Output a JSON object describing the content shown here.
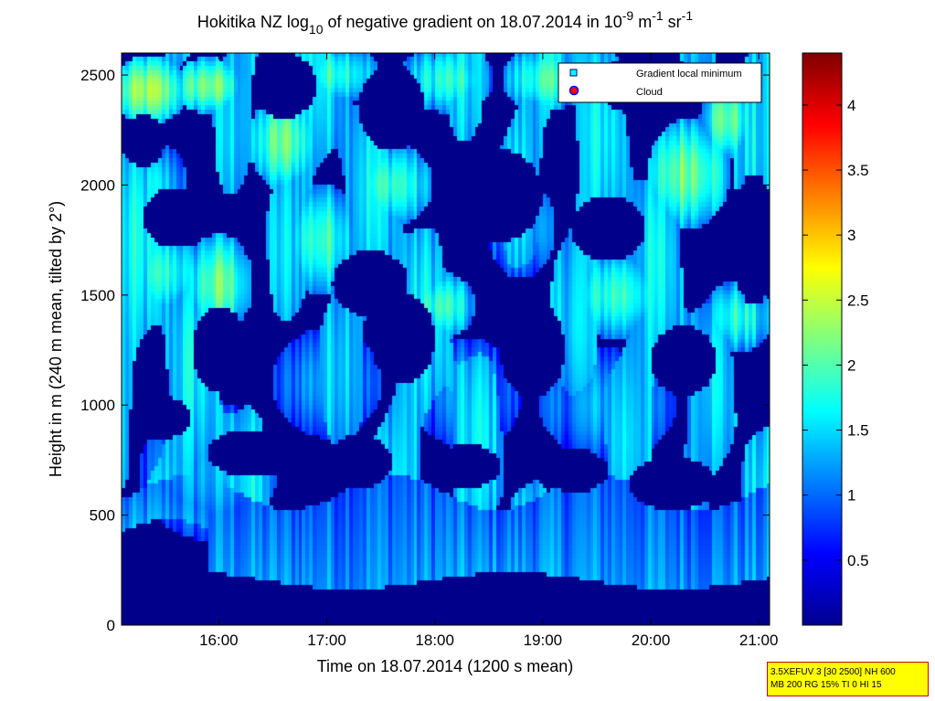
{
  "chart_data": {
    "type": "heatmap",
    "title": {
      "prefix": "Hokitika NZ log",
      "sub": "10",
      "mid": " of negative gradient on 18.07.2014 in 10",
      "sup1": "-9",
      "mid2": " m",
      "sup2": "-1",
      "mid3": " sr",
      "sup3": "-1"
    },
    "xlabel": "Time on 18.07.2014 (1200 s mean)",
    "ylabel": "Height in m (240 m mean, tilted by 2°)",
    "x_range_hours": [
      15.1,
      21.1
    ],
    "ylim": [
      0,
      2600
    ],
    "x_ticks": [
      {
        "value": 16,
        "label": "16:00"
      },
      {
        "value": 17,
        "label": "17:00"
      },
      {
        "value": 18,
        "label": "18:00"
      },
      {
        "value": 19,
        "label": "19:00"
      },
      {
        "value": 20,
        "label": "20:00"
      },
      {
        "value": 21,
        "label": "21:00"
      }
    ],
    "y_ticks": [
      {
        "value": 0,
        "label": "0"
      },
      {
        "value": 500,
        "label": "500"
      },
      {
        "value": 1000,
        "label": "1000"
      },
      {
        "value": 1500,
        "label": "1500"
      },
      {
        "value": 2000,
        "label": "2000"
      },
      {
        "value": 2500,
        "label": "2500"
      }
    ],
    "colorbar": {
      "colormap": "jet",
      "range": [
        0,
        4.4
      ],
      "ticks": [
        {
          "value": 0.5,
          "label": "0.5"
        },
        {
          "value": 1,
          "label": "1"
        },
        {
          "value": 1.5,
          "label": "1.5"
        },
        {
          "value": 2,
          "label": "2"
        },
        {
          "value": 2.5,
          "label": "2.5"
        },
        {
          "value": 3,
          "label": "3"
        },
        {
          "value": 3.5,
          "label": "3.5"
        },
        {
          "value": 4,
          "label": "4"
        }
      ]
    },
    "legend": {
      "placement": "top-right",
      "entries": [
        {
          "label": "Gradient local minimum",
          "marker": "square",
          "color": "#00ffff"
        },
        {
          "label": "Cloud",
          "marker": "circle",
          "color": "#ff0000"
        }
      ]
    },
    "field_description_values": {
      "near_ground_below_m": 200,
      "background_value": 0.05,
      "aerosol_layer_value": 1.1,
      "upper_patch_value": 1.6,
      "peak_patch_value": 2.3
    },
    "patches": [
      {
        "t": 15.35,
        "h": 2430,
        "rt": 0.3,
        "rh": 120,
        "v": 2.3
      },
      {
        "t": 15.9,
        "h": 2450,
        "rt": 0.25,
        "rh": 100,
        "v": 2.2
      },
      {
        "t": 16.6,
        "h": 2200,
        "rt": 0.25,
        "rh": 180,
        "v": 2.1
      },
      {
        "t": 17.1,
        "h": 2500,
        "rt": 0.3,
        "rh": 110,
        "v": 1.9
      },
      {
        "t": 18.1,
        "h": 2480,
        "rt": 0.35,
        "rh": 120,
        "v": 1.8
      },
      {
        "t": 19.0,
        "h": 2480,
        "rt": 0.3,
        "rh": 120,
        "v": 1.9
      },
      {
        "t": 20.35,
        "h": 2050,
        "rt": 0.3,
        "rh": 200,
        "v": 2.2
      },
      {
        "t": 20.7,
        "h": 2300,
        "rt": 0.2,
        "rh": 150,
        "v": 2.1
      },
      {
        "t": 15.5,
        "h": 1600,
        "rt": 0.25,
        "rh": 160,
        "v": 1.8
      },
      {
        "t": 16.0,
        "h": 1550,
        "rt": 0.25,
        "rh": 180,
        "v": 2.1
      },
      {
        "t": 16.95,
        "h": 1750,
        "rt": 0.3,
        "rh": 200,
        "v": 1.9
      },
      {
        "t": 17.6,
        "h": 2000,
        "rt": 0.3,
        "rh": 150,
        "v": 1.9
      },
      {
        "t": 18.05,
        "h": 1450,
        "rt": 0.25,
        "rh": 120,
        "v": 1.9
      },
      {
        "t": 19.7,
        "h": 1500,
        "rt": 0.35,
        "rh": 160,
        "v": 1.9
      },
      {
        "t": 20.8,
        "h": 1400,
        "rt": 0.25,
        "rh": 130,
        "v": 1.8
      },
      {
        "t": 15.9,
        "h": 700,
        "rt": 0.5,
        "rh": 250,
        "v": 1.3
      },
      {
        "t": 17.0,
        "h": 1100,
        "rt": 0.4,
        "rh": 200,
        "v": 1.3
      },
      {
        "t": 18.3,
        "h": 1050,
        "rt": 0.4,
        "rh": 200,
        "v": 1.2
      },
      {
        "t": 19.6,
        "h": 1000,
        "rt": 0.5,
        "rh": 200,
        "v": 1.3
      },
      {
        "t": 15.4,
        "h": 2000,
        "rt": 0.25,
        "rh": 150,
        "v": 1.5
      },
      {
        "t": 18.8,
        "h": 1800,
        "rt": 0.25,
        "rh": 180,
        "v": 1.4
      }
    ],
    "gaps": [
      {
        "t": 15.45,
        "h": 940,
        "rt": 0.3,
        "rh": 100
      },
      {
        "t": 16.3,
        "h": 780,
        "rt": 0.4,
        "rh": 110
      },
      {
        "t": 17.3,
        "h": 740,
        "rt": 0.3,
        "rh": 120
      },
      {
        "t": 18.3,
        "h": 720,
        "rt": 0.3,
        "rh": 100
      },
      {
        "t": 19.3,
        "h": 700,
        "rt": 0.3,
        "rh": 100
      },
      {
        "t": 20.2,
        "h": 640,
        "rt": 0.4,
        "rh": 120
      },
      {
        "t": 16.0,
        "h": 1250,
        "rt": 0.25,
        "rh": 200
      },
      {
        "t": 17.7,
        "h": 1300,
        "rt": 0.3,
        "rh": 200
      },
      {
        "t": 18.9,
        "h": 1250,
        "rt": 0.3,
        "rh": 220
      },
      {
        "t": 20.3,
        "h": 1200,
        "rt": 0.3,
        "rh": 160
      },
      {
        "t": 15.6,
        "h": 1850,
        "rt": 0.3,
        "rh": 140
      },
      {
        "t": 17.4,
        "h": 1550,
        "rt": 0.35,
        "rh": 150
      },
      {
        "t": 18.5,
        "h": 1950,
        "rt": 0.5,
        "rh": 220
      },
      {
        "t": 19.6,
        "h": 1800,
        "rt": 0.35,
        "rh": 150
      },
      {
        "t": 16.6,
        "h": 2450,
        "rt": 0.3,
        "rh": 150
      },
      {
        "t": 17.6,
        "h": 2350,
        "rt": 0.3,
        "rh": 200
      },
      {
        "t": 19.9,
        "h": 2450,
        "rt": 0.4,
        "rh": 130
      },
      {
        "t": 20.95,
        "h": 1750,
        "rt": 0.2,
        "rh": 300
      },
      {
        "t": 15.3,
        "h": 2200,
        "rt": 0.2,
        "rh": 120
      }
    ]
  },
  "info_box": {
    "line1": "3.5XEFUV 3 [30 2500] NH 600",
    "line2": "MB 200 RG 15% TI 0 HI 15"
  }
}
